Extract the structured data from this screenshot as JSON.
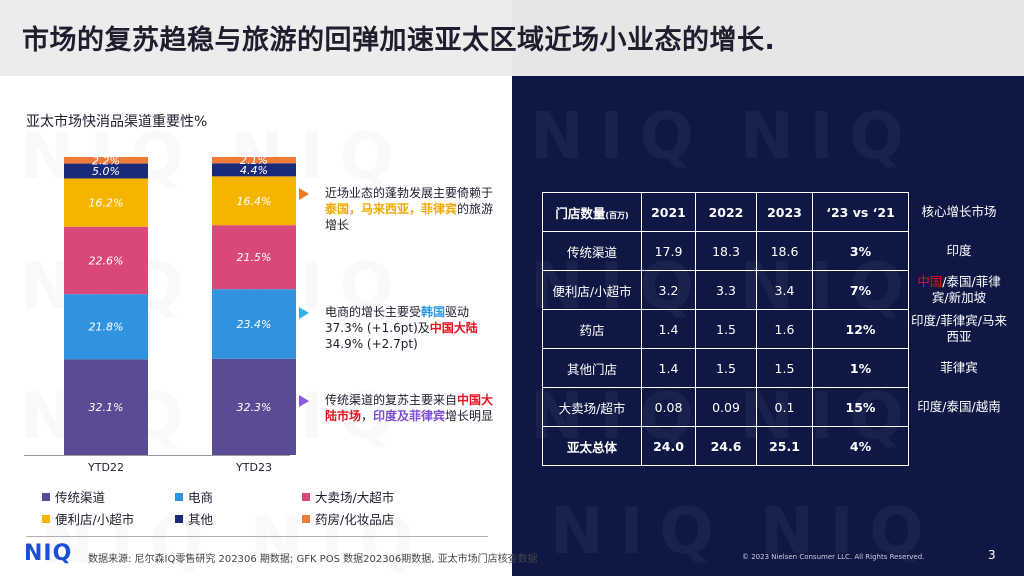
{
  "title": "市场的复苏趋稳与旅游的回弹加速亚太区域近场小业态的增长.",
  "watermark": "NIQ",
  "chart_data": {
    "type": "bar",
    "stacked": true,
    "title": "亚太市场快消品渠道重要性%",
    "categories": [
      "YTD22",
      "YTD23"
    ],
    "series": [
      {
        "name": "传统渠道",
        "color": "#5b4a94",
        "values": [
          32.1,
          32.3
        ]
      },
      {
        "name": "电商",
        "color": "#2f93e0",
        "values": [
          21.8,
          23.4
        ]
      },
      {
        "name": "大卖场/大超市",
        "color": "#d9487a",
        "values": [
          22.6,
          21.5
        ]
      },
      {
        "name": "便利店/小超市",
        "color": "#f4b400",
        "values": [
          16.2,
          16.4
        ]
      },
      {
        "name": "其他",
        "color": "#1b2a78",
        "values": [
          5.0,
          4.4
        ]
      },
      {
        "name": "药房/化妆品店",
        "color": "#f07a3a",
        "values": [
          2.2,
          2.1
        ]
      }
    ],
    "value_labels": [
      [
        "32.1%",
        "21.8%",
        "22.6%",
        "16.2%",
        "5.0%",
        "2.2%"
      ],
      [
        "32.3%",
        "23.4%",
        "21.5%",
        "16.4%",
        "4.4%",
        "2.1%"
      ]
    ],
    "ylim": [
      0,
      100
    ],
    "grid": false,
    "legend_position": "bottom"
  },
  "callouts": [
    {
      "arrow_color": "#f07a1e",
      "parts": [
        {
          "t": "近场业态的蓬勃发展主要倚赖于",
          "c": ""
        },
        {
          "t": "泰国，马来西亚，菲律宾",
          "c": "hl-orange"
        },
        {
          "t": "的旅游增长",
          "c": ""
        }
      ]
    },
    {
      "arrow_color": "#2fb3e8",
      "parts": [
        {
          "t": "电商的增长主要受",
          "c": ""
        },
        {
          "t": "韩国",
          "c": "hl-blue"
        },
        {
          "t": "驱动 37.3% (+1.6pt)及",
          "c": ""
        },
        {
          "t": "中国大陆",
          "c": "hl-red"
        },
        {
          "t": " 34.9% (+2.7pt)",
          "c": ""
        }
      ]
    },
    {
      "arrow_color": "#8a5ae0",
      "parts": [
        {
          "t": "传统渠道的复苏主要来自",
          "c": ""
        },
        {
          "t": "中国大陆市场",
          "c": "hl-red"
        },
        {
          "t": "，",
          "c": ""
        },
        {
          "t": "印度及菲律宾",
          "c": "hl-purple"
        },
        {
          "t": "增长明显",
          "c": ""
        }
      ]
    }
  ],
  "table": {
    "header": [
      "门店数量",
      "(百万)",
      "2021",
      "2022",
      "2023",
      "‘23 vs ‘21",
      "核心增长市场"
    ],
    "rows": [
      {
        "name": "传统渠道",
        "y2021": "17.9",
        "y2022": "18.3",
        "y2023": "18.6",
        "change": "3%",
        "core": [
          {
            "t": "印度",
            "c": ""
          }
        ]
      },
      {
        "name": "便利店/小超市",
        "y2021": "3.2",
        "y2022": "3.3",
        "y2023": "3.4",
        "change": "7%",
        "core": [
          {
            "t": "中国",
            "c": "#e8101e"
          },
          {
            "t": "/泰国/菲律宾/新加坡",
            "c": ""
          }
        ]
      },
      {
        "name": "药店",
        "y2021": "1.4",
        "y2022": "1.5",
        "y2023": "1.6",
        "change": "12%",
        "core": [
          {
            "t": "印度/菲律宾/马来西亚",
            "c": ""
          }
        ]
      },
      {
        "name": "其他门店",
        "y2021": "1.4",
        "y2022": "1.5",
        "y2023": "1.5",
        "change": "1%",
        "core": [
          {
            "t": "菲律宾",
            "c": ""
          }
        ]
      },
      {
        "name": "大卖场/超市",
        "y2021": "0.08",
        "y2022": "0.09",
        "y2023": "0.1",
        "change": "15%",
        "core": [
          {
            "t": "印度/泰国/越南",
            "c": ""
          }
        ]
      }
    ],
    "total": {
      "name": "亚太总体",
      "y2021": "24.0",
      "y2022": "24.6",
      "y2023": "25.1",
      "change": "4%"
    }
  },
  "footer": {
    "logo": "NIQ",
    "source": "数据来源: 尼尔森IQ零售研究 202306 期数据; GFK POS 数据202306期数据, 亚太市场门店核查数据",
    "copyright": "© 2023 Nielsen Consumer LLC. All Rights Reserved.",
    "page": "3"
  }
}
